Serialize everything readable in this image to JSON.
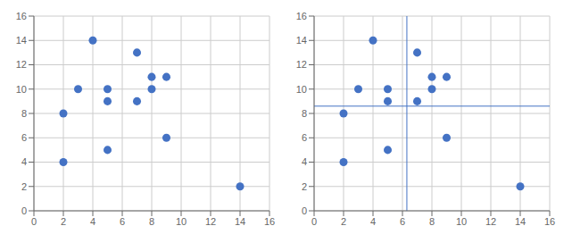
{
  "chart_data": [
    {
      "type": "scatter",
      "x": [
        2,
        2,
        3,
        4,
        5,
        5,
        5,
        7,
        7,
        8,
        8,
        9,
        9,
        14
      ],
      "y": [
        8,
        4,
        10,
        14,
        9,
        10,
        5,
        13,
        9,
        11,
        10,
        11,
        6,
        2
      ],
      "xlim": [
        0,
        16
      ],
      "ylim": [
        0,
        16
      ],
      "xticks": [
        0,
        2,
        4,
        6,
        8,
        10,
        12,
        14,
        16
      ],
      "yticks": [
        0,
        2,
        4,
        6,
        8,
        10,
        12,
        14,
        16
      ],
      "color": "#4472C4",
      "grid": true
    },
    {
      "type": "scatter",
      "x": [
        2,
        2,
        3,
        4,
        5,
        5,
        5,
        7,
        7,
        8,
        8,
        9,
        9,
        14
      ],
      "y": [
        8,
        4,
        10,
        14,
        9,
        10,
        5,
        13,
        9,
        11,
        10,
        11,
        6,
        2
      ],
      "xlim": [
        0,
        16
      ],
      "ylim": [
        0,
        16
      ],
      "xticks": [
        0,
        2,
        4,
        6,
        8,
        10,
        12,
        14,
        16
      ],
      "yticks": [
        0,
        2,
        4,
        6,
        8,
        10,
        12,
        14,
        16
      ],
      "color": "#4472C4",
      "grid": true,
      "quadrant_x": 6.3,
      "quadrant_y": 8.6,
      "quadrant_color": "#4472C4"
    }
  ]
}
